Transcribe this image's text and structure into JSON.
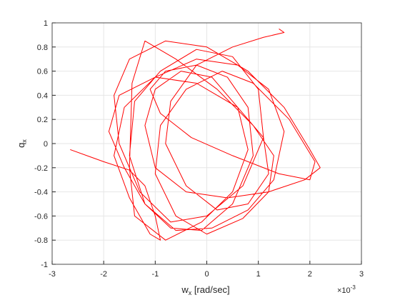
{
  "chart_data": {
    "type": "line",
    "xlabel": {
      "main": "w",
      "sub": "x",
      "rest": " [rad/sec]"
    },
    "ylabel": {
      "main": "q",
      "sub": "x"
    },
    "x_multiplier": {
      "base": "×10",
      "exponent": "-3"
    },
    "xlim": [
      -3,
      3
    ],
    "xticks": [
      -3,
      -2,
      -1,
      0,
      1,
      2,
      3
    ],
    "ylim": [
      -1,
      1
    ],
    "yticks": [
      -1,
      -0.8,
      -0.6,
      -0.4,
      -0.2,
      0,
      0.2,
      0.4,
      0.6,
      0.8,
      1
    ],
    "grid": true,
    "series": [
      {
        "color": "#ff0000",
        "x": [
          -2.65,
          -2.0,
          -1.5,
          -1.2,
          -1.0,
          -0.9,
          -1.1,
          -1.5,
          -1.8,
          -1.6,
          -1.0,
          -0.2,
          0.6,
          1.2,
          1.5,
          1.3,
          0.8,
          0.1,
          -0.6,
          -1.2,
          -1.5,
          -1.4,
          -0.9,
          -0.2,
          0.5,
          1.0,
          1.1,
          0.7,
          0.0,
          -0.7,
          -1.3,
          -1.7,
          -1.8,
          -1.5,
          -0.8,
          0.0,
          0.8,
          1.5,
          2.0,
          2.2,
          1.9,
          1.2,
          0.4,
          -0.4,
          -1.0,
          -1.2,
          -1.0,
          -0.5,
          0.1,
          0.6,
          0.8,
          0.5,
          -0.1,
          -0.8,
          -1.4,
          -1.5,
          -1.45,
          -1.2,
          -0.6,
          0.2,
          0.9,
          1.3,
          1.2,
          0.7,
          0.0,
          -0.6,
          -1.0,
          -0.9,
          -0.4,
          0.3,
          0.9,
          1.6,
          2.1,
          2.0,
          1.4,
          0.5,
          -0.3,
          -0.9,
          -1.1,
          -0.8,
          -0.2,
          0.4,
          0.8,
          0.9,
          0.5,
          -0.1,
          -0.7,
          -1.2,
          -1.6,
          -1.9,
          -1.7,
          -1.0,
          -0.2,
          0.6,
          1.1,
          1.2,
          0.8,
          0.2,
          -0.4,
          -0.8,
          -0.7,
          -0.2,
          0.5,
          1.1,
          1.5,
          1.4
        ],
        "values": [
          -0.05,
          -0.15,
          -0.22,
          -0.35,
          -0.6,
          -0.8,
          -0.75,
          -0.45,
          -0.1,
          0.3,
          0.55,
          0.7,
          0.65,
          0.45,
          0.1,
          -0.3,
          -0.55,
          -0.7,
          -0.72,
          -0.5,
          -0.1,
          0.35,
          0.6,
          0.78,
          0.72,
          0.45,
          0.05,
          -0.35,
          -0.6,
          -0.65,
          -0.4,
          0.0,
          0.4,
          0.7,
          0.85,
          0.8,
          0.6,
          0.3,
          -0.05,
          -0.2,
          -0.3,
          -0.4,
          -0.45,
          -0.4,
          -0.2,
          0.15,
          0.45,
          0.6,
          0.55,
          0.3,
          -0.05,
          -0.4,
          -0.65,
          -0.8,
          -0.6,
          -0.2,
          0.5,
          0.85,
          0.7,
          0.45,
          0.15,
          -0.1,
          -0.4,
          -0.62,
          -0.75,
          -0.6,
          -0.25,
          0.15,
          0.45,
          0.6,
          0.5,
          0.2,
          -0.15,
          -0.3,
          -0.25,
          -0.1,
          0.05,
          0.25,
          0.45,
          0.6,
          0.65,
          0.55,
          0.3,
          -0.1,
          -0.5,
          -0.72,
          -0.7,
          -0.5,
          -0.2,
          0.1,
          0.4,
          0.55,
          0.5,
          0.3,
          0.05,
          -0.25,
          -0.5,
          -0.55,
          -0.35,
          0.0,
          0.35,
          0.65,
          0.8,
          0.88,
          0.92,
          0.95
        ]
      }
    ]
  }
}
